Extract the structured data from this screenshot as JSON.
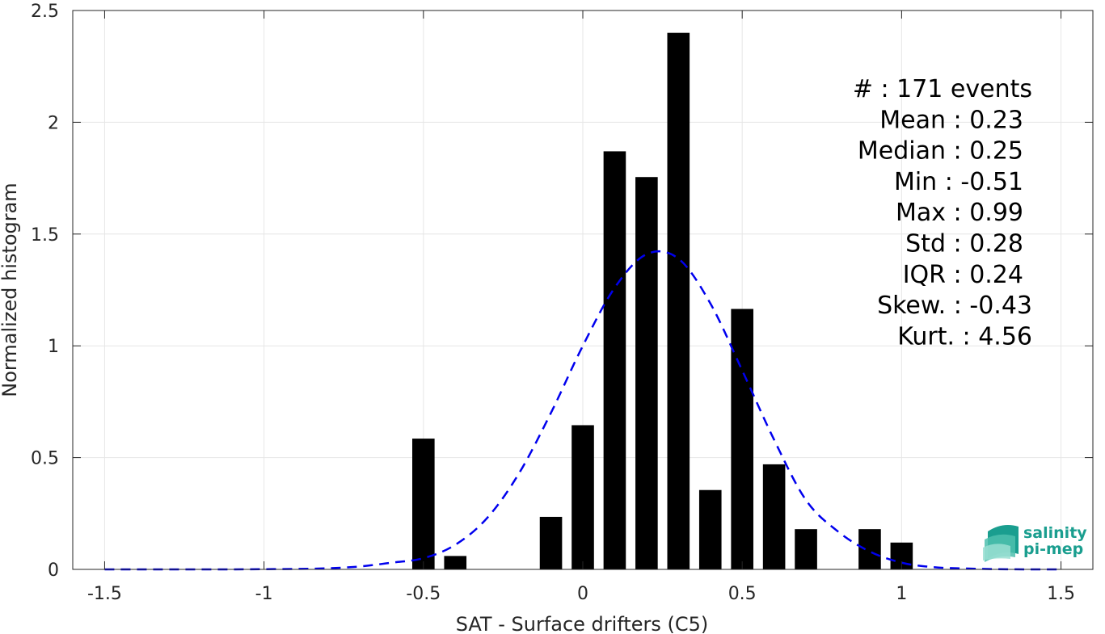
{
  "chart_data": {
    "type": "bar",
    "xlabel": "SAT - Surface drifters (C5)",
    "ylabel": "Normalized histogram",
    "xlim": [
      -1.6,
      1.6
    ],
    "ylim": [
      0,
      2.5
    ],
    "grid": true,
    "xticks": [
      -1.5,
      -1,
      -0.5,
      0,
      0.5,
      1,
      1.5
    ],
    "xtick_labels": [
      "-1.5",
      "-1",
      "-0.5",
      "0",
      "0.5",
      "1",
      "1.5"
    ],
    "yticks": [
      0,
      0.5,
      1,
      1.5,
      2,
      2.5
    ],
    "ytick_labels": [
      "0",
      "0.5",
      "1",
      "1.5",
      "2",
      "2.5"
    ],
    "bar_width": 0.07,
    "bars": [
      {
        "x": -0.5,
        "value": 0.585
      },
      {
        "x": -0.4,
        "value": 0.06
      },
      {
        "x": -0.1,
        "value": 0.235
      },
      {
        "x": 0.0,
        "value": 0.645
      },
      {
        "x": 0.1,
        "value": 1.87
      },
      {
        "x": 0.2,
        "value": 1.755
      },
      {
        "x": 0.3,
        "value": 2.4
      },
      {
        "x": 0.4,
        "value": 0.355
      },
      {
        "x": 0.5,
        "value": 1.165
      },
      {
        "x": 0.6,
        "value": 0.47
      },
      {
        "x": 0.7,
        "value": 0.18
      },
      {
        "x": 0.9,
        "value": 0.18
      },
      {
        "x": 1.0,
        "value": 0.12
      }
    ],
    "fit_curve": {
      "style": "dashed",
      "color": "#0000ee",
      "x": [
        -1.5,
        -1.4,
        -1.3,
        -1.2,
        -1.1,
        -1.0,
        -0.9,
        -0.8,
        -0.7,
        -0.6,
        -0.5,
        -0.4,
        -0.3,
        -0.2,
        -0.1,
        0.0,
        0.1,
        0.2,
        0.3,
        0.4,
        0.5,
        0.6,
        0.7,
        0.8,
        0.9,
        1.0,
        1.1,
        1.2,
        1.3,
        1.4,
        1.5
      ],
      "y": [
        0,
        0,
        0,
        0,
        0,
        0.001,
        0.002,
        0.005,
        0.013,
        0.03,
        0.05,
        0.11,
        0.23,
        0.43,
        0.7,
        1.0,
        1.26,
        1.41,
        1.39,
        1.19,
        0.89,
        0.58,
        0.31,
        0.17,
        0.08,
        0.03,
        0.01,
        0.004,
        0.001,
        0,
        0
      ]
    },
    "stats": [
      "#  : 171 events",
      "Mean : 0.23",
      "Median : 0.25",
      "Min : -0.51",
      "Max : 0.99",
      "Std : 0.28",
      "IQR : 0.24",
      "Skew. : -0.43",
      "Kurt. : 4.56"
    ]
  },
  "logo": {
    "line1": "salinity",
    "line2": "pi-mep",
    "color": "#1a9e8f"
  }
}
